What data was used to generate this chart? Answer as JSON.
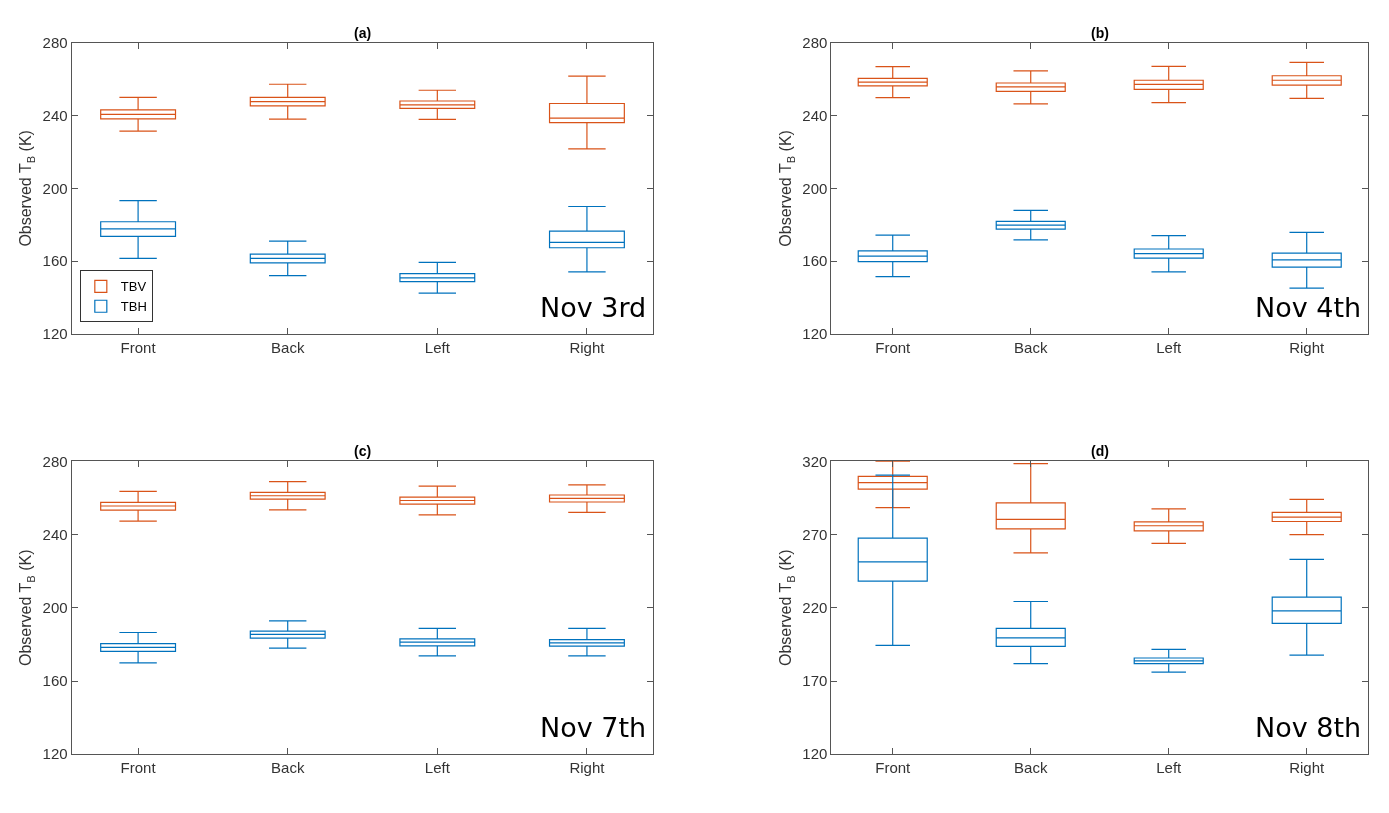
{
  "chart_data": [
    {
      "type": "box",
      "title": "(a)",
      "ylabel": "Observed T$_{B}$ (K)",
      "categories": [
        "Front",
        "Back",
        "Left",
        "Right"
      ],
      "ylim": [
        120,
        280
      ],
      "yticks": [
        120,
        160,
        200,
        240,
        280
      ],
      "legend": "bottom left",
      "annotations": [
        "Nov 3rd"
      ],
      "series": [
        {
          "name": "TBV",
          "color": "#d95319",
          "boxes": [
            {
              "low": 231.5,
              "q1": 238.3,
              "median": 240.7,
              "q3": 243.2,
              "high": 250.1
            },
            {
              "low": 238.1,
              "q1": 245.4,
              "median": 247.7,
              "q3": 250.1,
              "high": 257.3
            },
            {
              "low": 238.0,
              "q1": 244.0,
              "median": 246.0,
              "q3": 248.1,
              "high": 254.0
            },
            {
              "low": 221.7,
              "q1": 236.2,
              "median": 238.7,
              "q3": 246.7,
              "high": 261.8
            }
          ]
        },
        {
          "name": "TBH",
          "color": "#0072bd",
          "boxes": [
            {
              "low": 161.5,
              "q1": 173.6,
              "median": 177.7,
              "q3": 181.6,
              "high": 193.2
            },
            {
              "low": 151.9,
              "q1": 159.0,
              "median": 161.5,
              "q3": 163.8,
              "high": 170.9
            },
            {
              "low": 142.3,
              "q1": 148.6,
              "median": 150.7,
              "q3": 153.0,
              "high": 159.3
            },
            {
              "low": 154.0,
              "q1": 167.3,
              "median": 170.3,
              "q3": 176.5,
              "high": 190.0
            }
          ]
        }
      ]
    },
    {
      "type": "box",
      "title": "(b)",
      "ylabel": "Observed T$_{B}$ (K)",
      "categories": [
        "Front",
        "Back",
        "Left",
        "Right"
      ],
      "ylim": [
        120,
        280
      ],
      "yticks": [
        120,
        160,
        200,
        240,
        280
      ],
      "annotations": [
        "Nov 4th"
      ],
      "series": [
        {
          "color": "#d95319",
          "boxes": [
            {
              "low": 249.9,
              "q1": 256.4,
              "median": 258.5,
              "q3": 260.5,
              "high": 267.0
            },
            {
              "low": 246.5,
              "q1": 253.4,
              "median": 255.9,
              "q3": 258.0,
              "high": 264.7
            },
            {
              "low": 247.2,
              "q1": 254.5,
              "median": 257.2,
              "q3": 259.5,
              "high": 267.2
            },
            {
              "low": 249.5,
              "q1": 256.8,
              "median": 259.5,
              "q3": 262.0,
              "high": 269.3
            }
          ]
        },
        {
          "color": "#0072bd",
          "boxes": [
            {
              "low": 151.4,
              "q1": 159.7,
              "median": 162.7,
              "q3": 165.6,
              "high": 174.2
            },
            {
              "low": 171.6,
              "q1": 177.5,
              "median": 179.8,
              "q3": 181.8,
              "high": 187.9
            },
            {
              "low": 154.0,
              "q1": 161.6,
              "median": 164.1,
              "q3": 166.6,
              "high": 174.0
            },
            {
              "low": 145.1,
              "q1": 156.6,
              "median": 160.6,
              "q3": 164.3,
              "high": 175.8
            }
          ]
        }
      ]
    },
    {
      "type": "box",
      "title": "(c)",
      "ylabel": "Observed T$_{B}$ (K)",
      "categories": [
        "Front",
        "Back",
        "Left",
        "Right"
      ],
      "ylim": [
        120,
        280
      ],
      "yticks": [
        120,
        160,
        200,
        240,
        280
      ],
      "annotations": [
        "Nov 7th"
      ],
      "series": [
        {
          "color": "#d95319",
          "boxes": [
            {
              "low": 247.3,
              "q1": 253.3,
              "median": 255.6,
              "q3": 257.6,
              "high": 263.6
            },
            {
              "low": 253.5,
              "q1": 259.4,
              "median": 261.2,
              "q3": 263.0,
              "high": 268.9
            },
            {
              "low": 250.7,
              "q1": 256.6,
              "median": 258.6,
              "q3": 260.4,
              "high": 266.5
            },
            {
              "low": 252.1,
              "q1": 257.8,
              "median": 259.8,
              "q3": 261.6,
              "high": 267.1
            }
          ]
        },
        {
          "color": "#0072bd",
          "boxes": [
            {
              "low": 169.9,
              "q1": 176.2,
              "median": 178.4,
              "q3": 180.4,
              "high": 186.5
            },
            {
              "low": 178.0,
              "q1": 183.4,
              "median": 185.5,
              "q3": 187.3,
              "high": 192.9
            },
            {
              "low": 173.7,
              "q1": 179.2,
              "median": 181.2,
              "q3": 183.0,
              "high": 188.7
            },
            {
              "low": 173.7,
              "q1": 179.0,
              "median": 180.8,
              "q3": 182.6,
              "high": 188.7
            }
          ]
        }
      ]
    },
    {
      "type": "box",
      "title": "(d)",
      "ylabel": "Observed T$_{B}$ (K)",
      "categories": [
        "Front",
        "Back",
        "Left",
        "Right"
      ],
      "ylim": [
        120,
        320
      ],
      "yticks": [
        120,
        170,
        220,
        270,
        320
      ],
      "annotations": [
        "Nov 8th"
      ],
      "series": [
        {
          "color": "#d95319",
          "boxes": [
            {
              "low": 288.4,
              "q1": 301.0,
              "median": 305.5,
              "q3": 309.8,
              "high": 320.0
            },
            {
              "low": 257.5,
              "q1": 273.9,
              "median": 280.3,
              "q3": 291.6,
              "high": 318.4
            },
            {
              "low": 264.0,
              "q1": 272.5,
              "median": 276.0,
              "q3": 278.7,
              "high": 287.6
            },
            {
              "low": 269.9,
              "q1": 278.9,
              "median": 281.9,
              "q3": 285.1,
              "high": 294.0
            }
          ]
        },
        {
          "color": "#0072bd",
          "boxes": [
            {
              "low": 194.3,
              "q1": 238.2,
              "median": 251.4,
              "q3": 267.5,
              "high": 310.6
            },
            {
              "low": 181.9,
              "q1": 193.7,
              "median": 199.4,
              "q3": 206.0,
              "high": 224.3
            },
            {
              "low": 176.0,
              "q1": 181.9,
              "median": 183.8,
              "q3": 185.7,
              "high": 191.6
            },
            {
              "low": 187.6,
              "q1": 209.4,
              "median": 217.9,
              "q3": 227.3,
              "high": 253.0
            }
          ]
        }
      ]
    }
  ]
}
